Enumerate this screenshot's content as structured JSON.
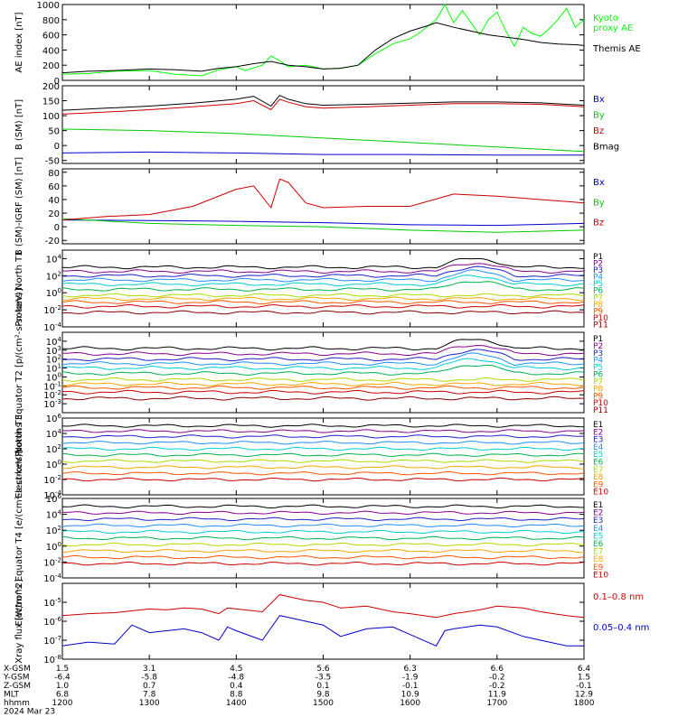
{
  "chart_data": [
    {
      "type": "line",
      "ylabel": "AE index [nT]",
      "ylim": [
        0,
        1000
      ],
      "log": false,
      "yticks": [
        "0",
        "200",
        "400",
        "600",
        "800",
        "1000"
      ],
      "ytick_values": [
        0,
        200,
        400,
        600,
        800,
        1000
      ],
      "series": [
        {
          "name": "Kyoto proxy AE",
          "color": "#00ff00",
          "label_lines": [
            "Kyoto",
            "proxy AE"
          ],
          "x": [
            12.0,
            12.3,
            12.6,
            13.0,
            13.3,
            13.6,
            13.8,
            14.0,
            14.1,
            14.3,
            14.4,
            14.5,
            14.6,
            14.8,
            15.0,
            15.2,
            15.4,
            15.6,
            15.8,
            16.0,
            16.1,
            16.3,
            16.4,
            16.5,
            16.6,
            16.8,
            16.9,
            17.0,
            17.1,
            17.2,
            17.3,
            17.4,
            17.5,
            17.6,
            17.7,
            17.8,
            17.9,
            18.0
          ],
          "y": [
            80,
            90,
            120,
            130,
            80,
            60,
            140,
            180,
            130,
            200,
            320,
            260,
            180,
            200,
            150,
            160,
            200,
            350,
            480,
            550,
            620,
            800,
            1000,
            760,
            920,
            600,
            800,
            900,
            650,
            450,
            700,
            620,
            580,
            680,
            800,
            950,
            700,
            800
          ]
        },
        {
          "name": "Themis AE",
          "color": "#000000",
          "label_lines": [
            "Themis AE"
          ],
          "x": [
            12.0,
            12.3,
            12.6,
            13.0,
            13.3,
            13.6,
            13.8,
            14.0,
            14.2,
            14.4,
            14.6,
            14.8,
            15.0,
            15.2,
            15.4,
            15.6,
            15.8,
            16.0,
            16.2,
            16.3,
            16.5,
            16.7,
            16.9,
            17.1,
            17.3,
            17.5,
            17.7,
            17.9,
            18.0
          ],
          "y": [
            100,
            120,
            130,
            150,
            140,
            120,
            160,
            180,
            220,
            250,
            200,
            180,
            150,
            160,
            200,
            400,
            550,
            650,
            720,
            760,
            700,
            650,
            600,
            570,
            540,
            500,
            480,
            470,
            460
          ]
        }
      ]
    },
    {
      "type": "line",
      "ylabel": "B (SM) [nT]",
      "ylim": [
        -60,
        200
      ],
      "log": false,
      "yticks": [
        "-50",
        "0",
        "50",
        "100",
        "150",
        "200"
      ],
      "ytick_values": [
        -50,
        0,
        50,
        100,
        150,
        200
      ],
      "series": [
        {
          "name": "Bx",
          "color": "#0000cc",
          "label_lines": [
            "Bx"
          ],
          "x": [
            12.0,
            13.0,
            14.0,
            15.0,
            16.0,
            17.0,
            18.0
          ],
          "y": [
            -25,
            -22,
            -25,
            -30,
            -30,
            -32,
            -32
          ]
        },
        {
          "name": "By",
          "color": "#00cc00",
          "label_lines": [
            "By"
          ],
          "x": [
            12.0,
            13.0,
            14.0,
            15.0,
            16.0,
            17.0,
            18.0
          ],
          "y": [
            55,
            50,
            40,
            25,
            10,
            -5,
            -20
          ]
        },
        {
          "name": "Bz",
          "color": "#cc0000",
          "label_lines": [
            "Bz"
          ],
          "x": [
            12.0,
            12.5,
            13.0,
            13.5,
            14.0,
            14.2,
            14.4,
            14.5,
            14.6,
            14.8,
            15.0,
            15.5,
            16.0,
            16.5,
            17.0,
            17.5,
            18.0
          ],
          "y": [
            105,
            112,
            120,
            130,
            140,
            150,
            120,
            155,
            145,
            130,
            125,
            130,
            135,
            140,
            140,
            138,
            130
          ]
        },
        {
          "name": "Bmag",
          "color": "#000000",
          "label_lines": [
            "Bmag"
          ],
          "x": [
            12.0,
            12.5,
            13.0,
            13.5,
            14.0,
            14.2,
            14.4,
            14.5,
            14.6,
            14.8,
            15.0,
            15.5,
            16.0,
            16.5,
            17.0,
            17.5,
            18.0
          ],
          "y": [
            118,
            125,
            132,
            142,
            155,
            165,
            132,
            168,
            155,
            140,
            135,
            138,
            142,
            146,
            146,
            143,
            135
          ]
        }
      ]
    },
    {
      "type": "line",
      "ylabel": "B (SM)-IGRF (SM) [nT]",
      "ylim": [
        -25,
        85
      ],
      "log": false,
      "yticks": [
        "-20",
        "0",
        "20",
        "40",
        "60",
        "80"
      ],
      "ytick_values": [
        -20,
        0,
        20,
        40,
        60,
        80
      ],
      "series": [
        {
          "name": "Bx",
          "color": "#0000cc",
          "label_lines": [
            "Bx"
          ],
          "x": [
            12.0,
            13.0,
            14.0,
            15.0,
            16.0,
            17.0,
            18.0
          ],
          "y": [
            10,
            9,
            8,
            6,
            3,
            2,
            5
          ]
        },
        {
          "name": "By",
          "color": "#00cc00",
          "label_lines": [
            "By"
          ],
          "x": [
            12.0,
            13.0,
            14.0,
            15.0,
            16.0,
            17.0,
            18.0
          ],
          "y": [
            12,
            5,
            2,
            0,
            -5,
            -8,
            -5
          ]
        },
        {
          "name": "Bz",
          "color": "#cc0000",
          "label_lines": [
            "Bz"
          ],
          "x": [
            12.0,
            12.5,
            13.0,
            13.5,
            14.0,
            14.2,
            14.4,
            14.5,
            14.6,
            14.8,
            15.0,
            15.5,
            16.0,
            16.5,
            17.0,
            17.5,
            18.0
          ],
          "y": [
            10,
            15,
            18,
            30,
            55,
            60,
            28,
            70,
            65,
            35,
            28,
            30,
            30,
            48,
            45,
            40,
            35
          ]
        }
      ]
    },
    {
      "type": "line",
      "ylabel": "Protons North T1",
      "ylim": [
        -4,
        5
      ],
      "log": true,
      "yticks": [
        "10^-4",
        "10^-2",
        "10^0",
        "10^2",
        "10^4"
      ],
      "ytick_values": [
        -4,
        -2,
        0,
        2,
        4
      ],
      "channels": [
        "P1",
        "P2",
        "P3",
        "P4",
        "P5",
        "P6",
        "P7",
        "P8",
        "P9",
        "P10",
        "P11"
      ],
      "channel_colors": [
        "#000000",
        "#8b008b",
        "#2020cc",
        "#1e90ff",
        "#00ced1",
        "#00b050",
        "#aadd00",
        "#ffa500",
        "#ff5500",
        "#cc0000",
        "#8b0000"
      ],
      "channel_base": [
        3.0,
        2.5,
        2.0,
        1.5,
        1.0,
        0.4,
        -0.3,
        -0.7,
        -1.1,
        -1.6,
        -2.3
      ]
    },
    {
      "type": "line",
      "ylabel": "Protons Equator T2 [p/(cm²-s-sr-keV)]",
      "ylim": [
        -4,
        5
      ],
      "log": true,
      "yticks": [
        "10^-3",
        "10^-2",
        "10^-1",
        "10^0",
        "10^1",
        "10^2",
        "10^3",
        "10^4"
      ],
      "ytick_values": [
        -3,
        -2,
        -1,
        0,
        1,
        2,
        3,
        4
      ],
      "channels": [
        "P1",
        "P2",
        "P3",
        "P4",
        "P5",
        "P6",
        "P7",
        "P8",
        "P9",
        "P10",
        "P11"
      ],
      "channel_colors": [
        "#000000",
        "#8b008b",
        "#2020cc",
        "#1e90ff",
        "#00ced1",
        "#00b050",
        "#aadd00",
        "#ffa500",
        "#ff5500",
        "#cc0000",
        "#8b0000"
      ],
      "channel_base": [
        3.2,
        2.6,
        2.0,
        1.5,
        1.0,
        0.4,
        -0.3,
        -0.8,
        -1.2,
        -1.7,
        -2.4
      ]
    },
    {
      "type": "line",
      "ylabel": "Electrons North T3",
      "ylim": [
        -4,
        6
      ],
      "log": true,
      "yticks": [
        "10^-4",
        "10^-2",
        "10^0",
        "10^2",
        "10^4",
        "10^6"
      ],
      "ytick_values": [
        -4,
        -2,
        0,
        2,
        4,
        6
      ],
      "channels": [
        "E1",
        "E2",
        "E3",
        "E4",
        "E5",
        "E6",
        "E7",
        "E8",
        "E9",
        "E10"
      ],
      "channel_colors": [
        "#000000",
        "#8b008b",
        "#2020cc",
        "#1e90ff",
        "#00ced1",
        "#00b050",
        "#aadd00",
        "#ffa500",
        "#ff5500",
        "#cc0000"
      ],
      "channel_base": [
        5.0,
        4.3,
        3.6,
        2.8,
        2.0,
        1.2,
        0.4,
        -0.4,
        -1.2,
        -2.0
      ]
    },
    {
      "type": "line",
      "ylabel": "Electrons Equator T4 [e/(cm²-s-sr-keV)]",
      "ylim": [
        -4,
        6
      ],
      "log": true,
      "yticks": [
        "10^-4",
        "10^-2",
        "10^0",
        "10^2",
        "10^4",
        "10^6"
      ],
      "ytick_values": [
        -4,
        -2,
        0,
        2,
        4,
        6
      ],
      "channels": [
        "E1",
        "E2",
        "E3",
        "E4",
        "E5",
        "E6",
        "E7",
        "E8",
        "E9",
        "E10"
      ],
      "channel_colors": [
        "#000000",
        "#8b008b",
        "#2020cc",
        "#1e90ff",
        "#00ced1",
        "#00b050",
        "#aadd00",
        "#ffa500",
        "#ff5500",
        "#cc0000"
      ],
      "channel_base": [
        5.0,
        4.2,
        3.4,
        2.6,
        1.8,
        1.0,
        0.2,
        -0.6,
        -1.4,
        -2.2
      ]
    },
    {
      "type": "line",
      "ylabel": "Xray flux [W/m^2]",
      "ylim": [
        -8,
        -4
      ],
      "log": true,
      "yticks": [
        "10^-8",
        "10^-7",
        "10^-6",
        "10^-5"
      ],
      "ytick_values": [
        -8,
        -7,
        -6,
        -5
      ],
      "series": [
        {
          "name": "0.1–0.8 nm",
          "color": "#cc0000",
          "label_lines": [
            "0.1–0.8 nm"
          ],
          "x": [
            12.0,
            12.3,
            12.6,
            13.0,
            13.2,
            13.4,
            13.6,
            13.8,
            13.9,
            14.0,
            14.3,
            14.5,
            14.6,
            14.8,
            15.0,
            15.2,
            15.5,
            15.8,
            16.0,
            16.3,
            16.5,
            16.8,
            17.0,
            17.3,
            17.5,
            17.8,
            18.0
          ],
          "y": [
            -5.7,
            -5.6,
            -5.55,
            -5.35,
            -5.4,
            -5.3,
            -5.35,
            -5.6,
            -5.3,
            -5.35,
            -5.5,
            -4.6,
            -4.7,
            -4.9,
            -5.0,
            -5.3,
            -5.2,
            -5.5,
            -5.6,
            -5.8,
            -5.6,
            -5.4,
            -5.2,
            -5.3,
            -5.5,
            -5.7,
            -5.8
          ]
        },
        {
          "name": "0.05–0.4 nm",
          "color": "#0000cc",
          "label_lines": [
            "0.05–0.4 nm"
          ],
          "x": [
            12.0,
            12.3,
            12.6,
            12.8,
            13.0,
            13.2,
            13.4,
            13.6,
            13.8,
            13.9,
            14.0,
            14.3,
            14.5,
            14.6,
            14.8,
            15.0,
            15.2,
            15.5,
            15.8,
            16.0,
            16.3,
            16.4,
            16.5,
            16.8,
            17.0,
            17.3,
            17.5,
            17.8,
            18.0
          ],
          "y": [
            -7.3,
            -7.1,
            -7.2,
            -6.2,
            -6.6,
            -6.5,
            -6.4,
            -6.6,
            -7.0,
            -6.3,
            -6.5,
            -7.0,
            -5.7,
            -5.8,
            -6.0,
            -6.2,
            -6.8,
            -6.4,
            -6.3,
            -6.7,
            -7.3,
            -6.5,
            -6.4,
            -6.2,
            -6.3,
            -6.8,
            -7.0,
            -7.3,
            -7.3
          ]
        }
      ]
    }
  ],
  "xaxis": {
    "row_labels": [
      "X-GSM",
      "Y-GSM",
      "Z-GSM",
      "MLT",
      "hhmm"
    ],
    "ticks": [
      {
        "X-GSM": "1.5",
        "Y-GSM": "-6.4",
        "Z-GSM": "1.0",
        "MLT": "6.8",
        "hhmm": "1200"
      },
      {
        "X-GSM": "3.1",
        "Y-GSM": "-5.8",
        "Z-GSM": "0.7",
        "MLT": "7.8",
        "hhmm": "1300"
      },
      {
        "X-GSM": "4.5",
        "Y-GSM": "-4.8",
        "Z-GSM": "0.4",
        "MLT": "8.8",
        "hhmm": "1400"
      },
      {
        "X-GSM": "5.6",
        "Y-GSM": "-3.5",
        "Z-GSM": "0.1",
        "MLT": "9.8",
        "hhmm": "1500"
      },
      {
        "X-GSM": "6.3",
        "Y-GSM": "-1.9",
        "Z-GSM": "-0.1",
        "MLT": "10.9",
        "hhmm": "1600"
      },
      {
        "X-GSM": "6.6",
        "Y-GSM": "-0.2",
        "Z-GSM": "-0.2",
        "MLT": "11.9",
        "hhmm": "1700"
      },
      {
        "X-GSM": "6.4",
        "Y-GSM": "1.5",
        "Z-GSM": "-0.1",
        "MLT": "12.9",
        "hhmm": "1800"
      }
    ],
    "tick_hours": [
      12,
      13,
      14,
      15,
      16,
      17,
      18
    ],
    "date": "2024 Mar 23"
  }
}
